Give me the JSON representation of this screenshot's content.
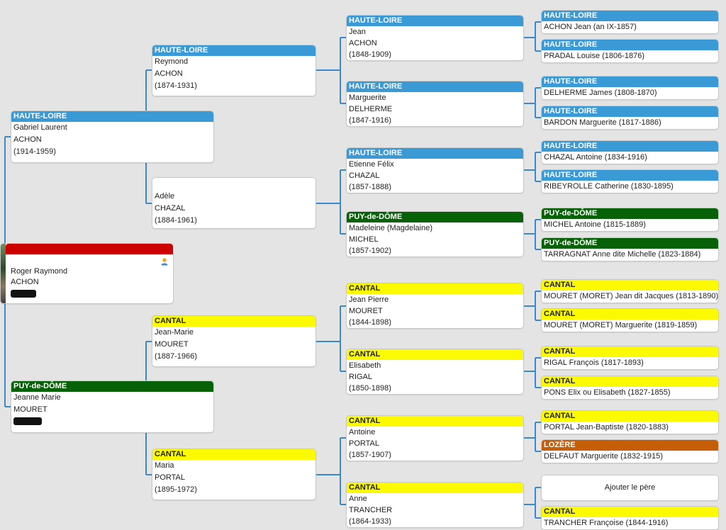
{
  "root": {
    "given": "Roger Raymond",
    "surname": "ACHON",
    "icon": "person-icon"
  },
  "gen1": [
    {
      "region": "HAUTE-LOIRE",
      "given": "Gabriel Laurent",
      "surname": "ACHON",
      "dates": "(1914-1959)"
    },
    {
      "region": "PUY-de-DÔME",
      "given": "Jeanne Marie",
      "surname": "MOURET",
      "dates": ""
    }
  ],
  "gen2": [
    {
      "region": "HAUTE-LOIRE",
      "given": "Reymond",
      "surname": "ACHON",
      "dates": "(1874-1931)"
    },
    {
      "region": "",
      "given": "Adèle",
      "surname": "CHAZAL",
      "dates": "(1884-1961)"
    },
    {
      "region": "CANTAL",
      "given": "Jean-Marie",
      "surname": "MOURET",
      "dates": "(1887-1966)"
    },
    {
      "region": "CANTAL",
      "given": "Maria",
      "surname": "PORTAL",
      "dates": "(1895-1972)"
    }
  ],
  "gen3": [
    {
      "region": "HAUTE-LOIRE",
      "given": "Jean",
      "surname": "ACHON",
      "dates": "(1848-1909)"
    },
    {
      "region": "HAUTE-LOIRE",
      "given": "Marguerite",
      "surname": "DELHERME",
      "dates": "(1847-1916)"
    },
    {
      "region": "HAUTE-LOIRE",
      "given": "Etienne Félix",
      "surname": "CHAZAL",
      "dates": "(1857-1888)"
    },
    {
      "region": "PUY-de-DÔME",
      "given": "Madeleine (Magdelaine)",
      "surname": "MICHEL",
      "dates": "(1857-1902)"
    },
    {
      "region": "CANTAL",
      "given": "Jean Pierre",
      "surname": "MOURET",
      "dates": "(1844-1898)"
    },
    {
      "region": "CANTAL",
      "given": "Elisabeth",
      "surname": "RIGAL",
      "dates": "(1850-1898)"
    },
    {
      "region": "CANTAL",
      "given": "Antoine",
      "surname": "PORTAL",
      "dates": "(1857-1907)"
    },
    {
      "region": "CANTAL",
      "given": "Anne",
      "surname": "TRANCHER",
      "dates": "(1864-1933)"
    }
  ],
  "gen4": [
    {
      "region": "HAUTE-LOIRE",
      "text": "ACHON Jean (an IX-1857)"
    },
    {
      "region": "HAUTE-LOIRE",
      "text": "PRADAL Louise (1806-1876)"
    },
    {
      "region": "HAUTE-LOIRE",
      "text": "DELHERME James (1808-1870)"
    },
    {
      "region": "HAUTE-LOIRE",
      "text": "BARDON Marguerite (1817-1886)"
    },
    {
      "region": "HAUTE-LOIRE",
      "text": "CHAZAL Antoine (1834-1916)"
    },
    {
      "region": "HAUTE-LOIRE",
      "text": "RIBEYROLLE Catherine (1830-1895)"
    },
    {
      "region": "PUY-de-DÔME",
      "text": "MICHEL Antoine (1815-1889)"
    },
    {
      "region": "PUY-de-DÔME",
      "text": "TARRAGNAT Anne dite Michelle (1823-1884)"
    },
    {
      "region": "CANTAL",
      "text": "MOURET (MORET) Jean dit Jacques (1813-1890)"
    },
    {
      "region": "CANTAL",
      "text": "MOURET (MORET) Marguerite (1819-1859)"
    },
    {
      "region": "CANTAL",
      "text": "RIGAL François (1817-1893)"
    },
    {
      "region": "CANTAL",
      "text": "PONS Elix ou Elisabeth (1827-1855)"
    },
    {
      "region": "CANTAL",
      "text": "PORTAL Jean-Baptiste (1820-1883)"
    },
    {
      "region": "LOZÈRE",
      "text": "DELFAUT Marguerite (1832-1915)"
    },
    {
      "region": "",
      "text": ""
    },
    {
      "region": "CANTAL",
      "text": "TRANCHER Françoise (1844-1916)"
    }
  ],
  "add_father_label": "Ajouter le père",
  "region_colors": {
    "HAUTE-LOIRE": "#3a9ad6",
    "PUY-de-DÔME": "#076106",
    "CANTAL": "#fbfa00",
    "LOZÈRE": "#c65e08"
  },
  "link_color": "#3a88d0"
}
